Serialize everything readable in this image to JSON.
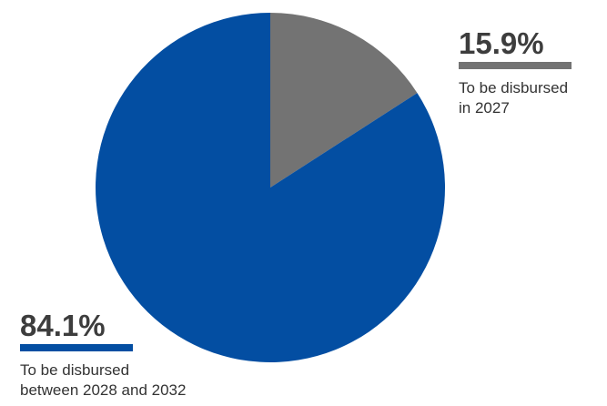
{
  "chart_data": {
    "type": "pie",
    "title": "",
    "start_angle_deg": 0,
    "direction": "clockwise",
    "slices": [
      {
        "value": 15.9,
        "label": "15.9%",
        "description": "To be disbursed in 2027",
        "description_lines": [
          "To be disbursed",
          "in 2027"
        ],
        "color": "#737373"
      },
      {
        "value": 84.1,
        "label": "84.1%",
        "description": "To be disbursed between 2028 and 2032",
        "description_lines": [
          "To be disbursed",
          "between 2028 and 2032"
        ],
        "color": "#034ea2"
      }
    ]
  }
}
